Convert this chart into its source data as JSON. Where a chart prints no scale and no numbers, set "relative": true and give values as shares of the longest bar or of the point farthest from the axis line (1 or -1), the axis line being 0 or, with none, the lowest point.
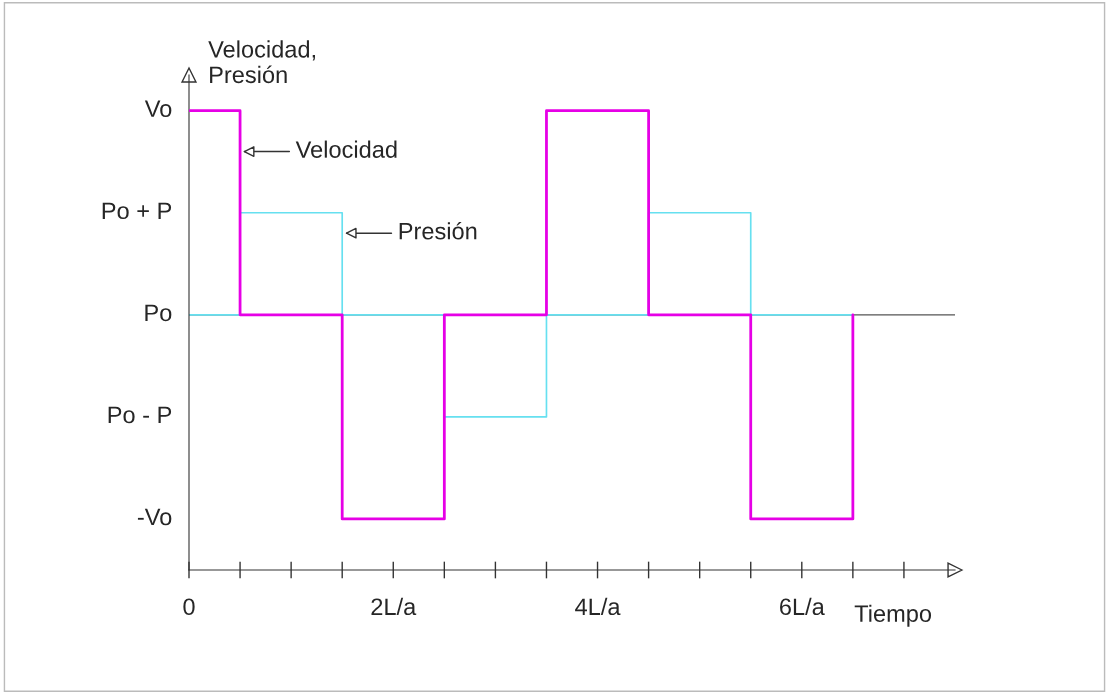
{
  "chart_data": {
    "type": "step",
    "relative": true,
    "ylabel": "Velocidad,\nPresión",
    "xlabel": "Tiempo",
    "x": [
      0,
      0.5,
      1.5,
      2.5,
      3.5,
      4.5,
      5.5,
      6.5
    ],
    "series": [
      {
        "name": "Velocidad",
        "color": "#e600e6",
        "values": [
          1,
          0,
          -1,
          0,
          1,
          0,
          -1,
          0
        ]
      },
      {
        "name": "Presión",
        "color": "#66e0f0",
        "values": [
          0,
          0.5,
          0,
          -0.5,
          0,
          0.5,
          0,
          0
        ]
      }
    ],
    "xlim": [
      0,
      7.5
    ],
    "xticks": [
      0,
      {
        "value": 2,
        "label": "2L/a"
      },
      {
        "value": 4,
        "label": "4L/a"
      },
      {
        "value": 6,
        "label": "6L/a"
      }
    ],
    "ref_lines": [
      {
        "axis": "y",
        "value": 0,
        "color": "#555555"
      }
    ],
    "annotations": [
      "Vo",
      "Po + P",
      "Po",
      "Po - P",
      "-Vo"
    ],
    "grid": false
  }
}
